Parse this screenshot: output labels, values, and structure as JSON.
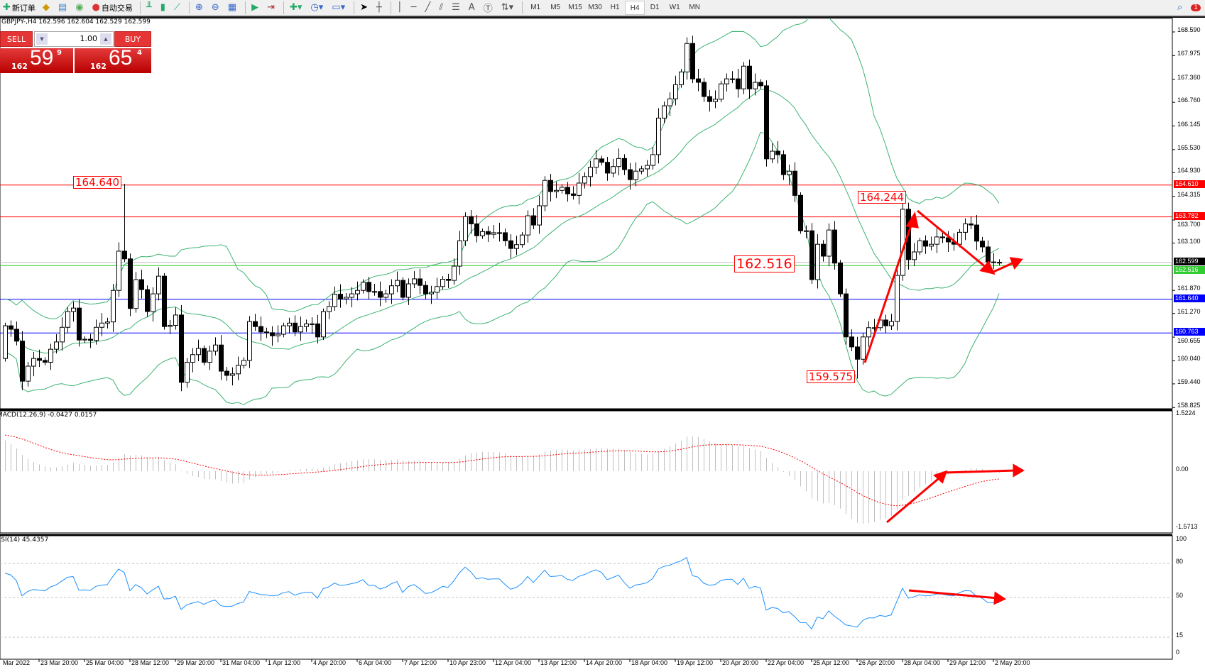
{
  "toolbar": {
    "new_order_label": "新订单",
    "auto_trading_label": "自动交易",
    "timeframes": [
      "M1",
      "M5",
      "M15",
      "M30",
      "H1",
      "H4",
      "D1",
      "W1",
      "MN"
    ],
    "active_timeframe": "H4",
    "notification_count": "1"
  },
  "chart": {
    "symbol_info": "GBPJPY-,H4  162.596 162.604 162.529 162.599",
    "one_click": {
      "sell_label": "SELL",
      "buy_label": "BUY",
      "lot": "1.00",
      "sell_price_prefix": "162",
      "sell_price_big": "59",
      "sell_price_sup": "9",
      "buy_price_prefix": "162",
      "buy_price_big": "65",
      "buy_price_sup": "4"
    },
    "price_axis": [
      "168.590",
      "167.975",
      "167.360",
      "166.760",
      "166.145",
      "165.530",
      "164.930",
      "164.315",
      "163.700",
      "163.100",
      "161.870",
      "161.270",
      "160.655",
      "160.040",
      "159.440",
      "158.825"
    ],
    "horizontal_lines": [
      {
        "price": "164.610",
        "color": "#ff0000"
      },
      {
        "price": "163.782",
        "color": "#ff0000"
      },
      {
        "price": "162.599",
        "color": "#000000",
        "line_color": "#c0c0c0"
      },
      {
        "price": "162.516",
        "color": "#33cc33"
      },
      {
        "price": "161.640",
        "color": "#0000ff"
      },
      {
        "price": "160.763",
        "color": "#0000ff"
      }
    ],
    "annotations": {
      "high_1": "164.640",
      "high_2": "164.244",
      "low_1": "159.575",
      "current": "162.516"
    },
    "bull_color": "#ffffff",
    "bear_color": "#000000",
    "band_color": "#3cb371",
    "first_open": 160.1,
    "closes": [
      160.95,
      160.86,
      160.55,
      159.51,
      159.9,
      160.1,
      160.05,
      160.0,
      160.34,
      160.53,
      160.91,
      161.32,
      161.41,
      160.58,
      160.6,
      160.57,
      160.91,
      161.02,
      161.05,
      161.87,
      162.89,
      162.69,
      161.4,
      162.15,
      161.89,
      161.32,
      161.78,
      162.24,
      160.93,
      160.96,
      161.23,
      159.48,
      160.0,
      160.2,
      160.36,
      160.0,
      160.29,
      160.45,
      159.77,
      159.66,
      159.7,
      159.92,
      160.05,
      161.06,
      160.93,
      160.79,
      160.77,
      160.69,
      160.73,
      160.95,
      161.02,
      160.79,
      160.93,
      161.0,
      161.0,
      160.66,
      161.32,
      161.45,
      161.77,
      161.65,
      161.69,
      161.78,
      161.87,
      162.08,
      161.84,
      161.84,
      161.69,
      161.78,
      161.99,
      162.13,
      161.69,
      162.04,
      162.17,
      162.0,
      161.78,
      161.82,
      161.97,
      162.16,
      162.13,
      162.5,
      163.16,
      163.79,
      163.6,
      163.29,
      163.4,
      163.33,
      163.37,
      163.37,
      163.16,
      162.96,
      163.06,
      163.31,
      163.81,
      163.57,
      164.07,
      164.73,
      164.44,
      164.47,
      164.55,
      164.38,
      164.34,
      164.66,
      164.83,
      165.07,
      165.29,
      165.2,
      164.92,
      165.09,
      165.3,
      165.01,
      164.75,
      164.97,
      165.03,
      165.12,
      165.4,
      166.35,
      166.67,
      166.85,
      167.22,
      167.55,
      168.29,
      167.37,
      167.28,
      166.91,
      166.78,
      166.84,
      167.24,
      167.37,
      167.37,
      167.11,
      167.7,
      167.11,
      167.28,
      167.19,
      165.29,
      165.49,
      165.4,
      164.88,
      164.97,
      164.34,
      163.42,
      163.42,
      162.15,
      163.07,
      162.76,
      163.44,
      162.58,
      161.78,
      160.66,
      160.4,
      160.08,
      160.66,
      160.9,
      160.9,
      161.1,
      160.95,
      161.06,
      162.26,
      163.98,
      162.67,
      162.87,
      163.16,
      163.02,
      163.07,
      163.26,
      163.24,
      163.13,
      163.07,
      163.38,
      163.6,
      163.57,
      163.15,
      163.0,
      162.61,
      162.6,
      162.599
    ],
    "notable_highs": [
      [
        21,
        164.64
      ],
      [
        158,
        164.244
      ],
      [
        120,
        168.45
      ]
    ],
    "notable_lows": [
      [
        150,
        159.575
      ]
    ]
  },
  "macd": {
    "title": "MACD(12,26,9) -0.0427 0.0157",
    "axis": [
      "1.5224",
      "0.00",
      "-1.5713"
    ],
    "histogram_color": "#c0c0c0",
    "signal_color": "#ff0000"
  },
  "rsi": {
    "title": "RSI(14) 45.4357",
    "axis": [
      "100",
      "80",
      "50",
      "15",
      "0"
    ],
    "line_color": "#1e90ff"
  },
  "time_axis": [
    "Mar 2022",
    "23 Mar 20:00",
    "25 Mar 04:00",
    "28 Mar 12:00",
    "29 Mar 20:00",
    "31 Mar 04:00",
    "1 Apr 12:00",
    "4 Apr 20:00",
    "6 Apr 04:00",
    "7 Apr 12:00",
    "10 Apr 23:00",
    "12 Apr 04:00",
    "13 Apr 12:00",
    "14 Apr 20:00",
    "18 Apr 04:00",
    "19 Apr 12:00",
    "20 Apr 20:00",
    "22 Apr 04:00",
    "25 Apr 12:00",
    "26 Apr 20:00",
    "28 Apr 04:00",
    "29 Apr 12:00",
    "2 May 20:00"
  ]
}
